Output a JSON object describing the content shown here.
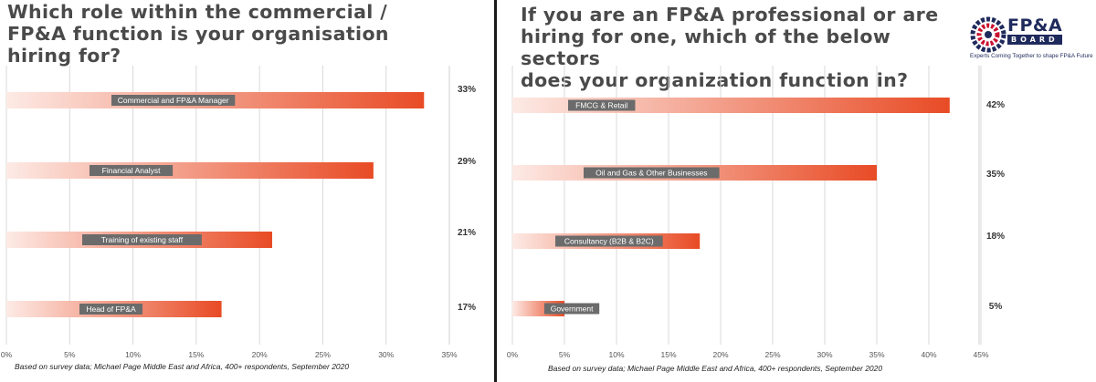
{
  "logo": {
    "wordmark": "FP&A",
    "board": "BOARD",
    "tagline": "Experts Coming Together to shape FP&A Future"
  },
  "chart_data": [
    {
      "type": "bar",
      "orientation": "horizontal",
      "title": "Which role within the commercial /\nFP&A function is your organisation\nhiring for?",
      "categories": [
        "Commercial and FP&A Manager",
        "Financial Analyst",
        "Training of existing staff",
        "Head of FP&A"
      ],
      "values": [
        33,
        29,
        21,
        17
      ],
      "value_labels": [
        "33%",
        "29%",
        "21%",
        "17%"
      ],
      "xlim": [
        0,
        35
      ],
      "xticks": [
        "0%",
        "5%",
        "10%",
        "15%",
        "20%",
        "25%",
        "30%",
        "35%"
      ],
      "xlabel": "",
      "ylabel": "",
      "grid": true,
      "source": "Based on survey data; Michael Page Middle East and Africa, 400+ respondents, September 2020",
      "colors": {
        "bar_start": "#fdeae5",
        "bar_end": "#e84b25",
        "label_box": "#6b6b6b",
        "grid": "#d9d9d9"
      }
    },
    {
      "type": "bar",
      "orientation": "horizontal",
      "title": "If you are an FP&A professional or are\nhiring for one, which of the below sectors\ndoes your organization function in?",
      "categories": [
        "FMCG & Retail",
        "Oil and Gas & Other Businesses",
        "Consultancy (B2B & B2C)",
        "Government"
      ],
      "values": [
        42,
        35,
        18,
        5
      ],
      "value_labels": [
        "42%",
        "35%",
        "18%",
        "5%"
      ],
      "xlim": [
        0,
        45
      ],
      "xticks": [
        "0%",
        "5%",
        "10%",
        "15%",
        "20%",
        "25%",
        "30%",
        "35%",
        "40%",
        "45%"
      ],
      "xlabel": "",
      "ylabel": "",
      "grid": true,
      "source": "Based on survey data; Michael Page Middle East and Africa, 400+ respondents, September 2020",
      "colors": {
        "bar_start": "#fdeae5",
        "bar_end": "#e84b25",
        "label_box": "#6b6b6b",
        "grid": "#d9d9d9"
      }
    }
  ]
}
